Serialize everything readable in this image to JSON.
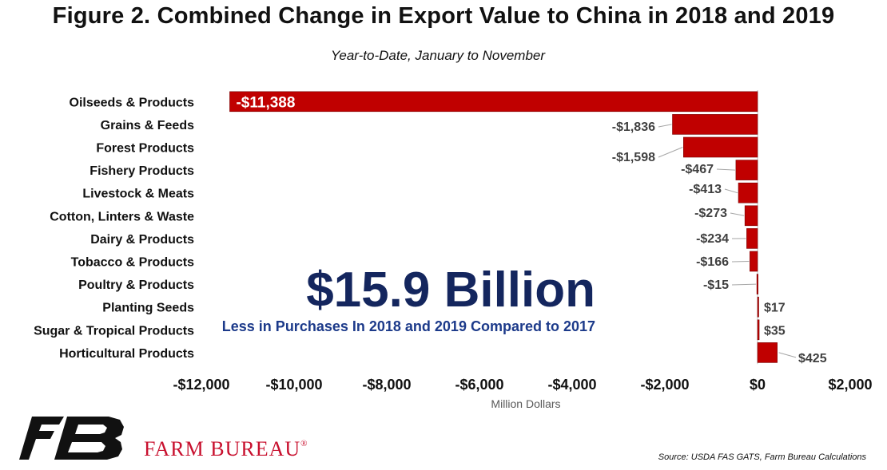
{
  "title": "Figure 2. Combined Change in Export Value to China in 2018 and 2019",
  "subtitle": "Year-to-Date, January to November",
  "callout": {
    "value": "$15.9 Billion",
    "text": "Less in Purchases In 2018 and 2019 Compared to 2017"
  },
  "brand": {
    "name": "FARM BUREAU",
    "mark": "®"
  },
  "source": "Source: USDA FAS GATS, Farm Bureau Calculations",
  "colors": {
    "bar": "#c00000",
    "callout": "#14265e",
    "brand": "#c8102e"
  },
  "chart_data": {
    "type": "bar",
    "orientation": "horizontal",
    "categories": [
      "Oilseeds & Products",
      "Grains & Feeds",
      "Forest Products",
      "Fishery Products",
      "Livestock & Meats",
      "Cotton, Linters & Waste",
      "Dairy & Products",
      "Tobacco & Products",
      "Poultry & Products",
      "Planting Seeds",
      "Sugar & Tropical Products",
      "Horticultural Products"
    ],
    "values": [
      -11388,
      -1836,
      -1598,
      -467,
      -413,
      -273,
      -234,
      -166,
      -15,
      17,
      35,
      425
    ],
    "data_labels": [
      "-$11,388",
      "-$1,836",
      "-$1,598",
      "-$467",
      "-$413",
      "-$273",
      "-$234",
      "-$166",
      "-$15",
      "$17",
      "$35",
      "$425"
    ],
    "xlabel": "Million Dollars",
    "xlim": [
      -12000,
      2000
    ],
    "xticks": [
      -12000,
      -10000,
      -8000,
      -6000,
      -4000,
      -2000,
      0,
      2000
    ],
    "xtick_labels": [
      "-$12,000",
      "-$10,000",
      "-$8,000",
      "-$6,000",
      "-$4,000",
      "-$2,000",
      "$0",
      "$2,000"
    ],
    "grid": false
  }
}
